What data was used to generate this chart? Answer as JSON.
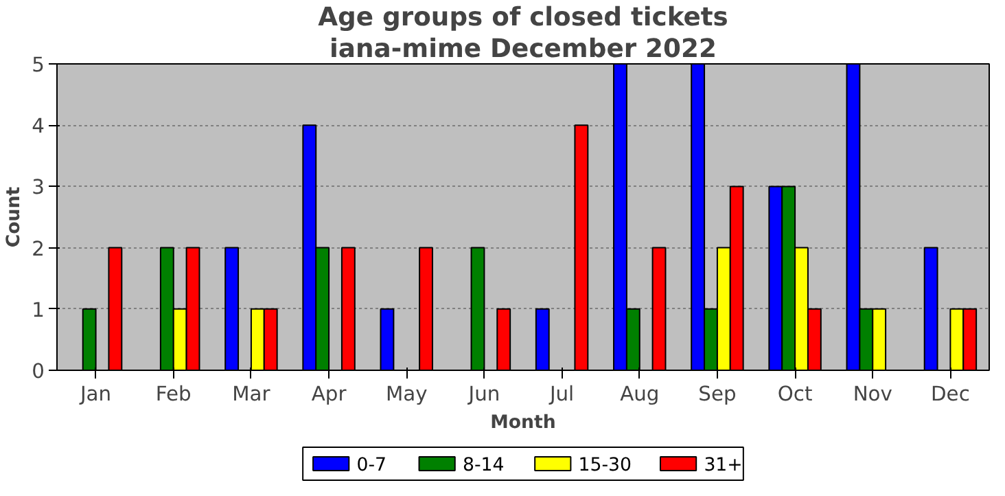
{
  "chart_data": {
    "type": "bar",
    "title": "Age groups of closed tickets",
    "subtitle": "iana-mime December 2022",
    "xlabel": "Month",
    "ylabel": "Count",
    "categories": [
      "Jan",
      "Feb",
      "Mar",
      "Apr",
      "May",
      "Jun",
      "Jul",
      "Aug",
      "Sep",
      "Oct",
      "Nov",
      "Dec"
    ],
    "series": [
      {
        "name": "0-7",
        "color": "#0000ff",
        "values": [
          0,
          0,
          2,
          4,
          1,
          0,
          1,
          5,
          5,
          3,
          5,
          2
        ]
      },
      {
        "name": "8-14",
        "color": "#008000",
        "values": [
          1,
          2,
          0,
          2,
          0,
          2,
          0,
          1,
          1,
          3,
          1,
          0
        ]
      },
      {
        "name": "15-30",
        "color": "#ffff00",
        "values": [
          0,
          1,
          1,
          0,
          0,
          0,
          0,
          0,
          2,
          2,
          1,
          1
        ]
      },
      {
        "name": "31+",
        "color": "#ff0000",
        "values": [
          2,
          2,
          1,
          2,
          2,
          1,
          4,
          2,
          3,
          1,
          0,
          1
        ]
      }
    ],
    "ylim": [
      0,
      5
    ],
    "yticks": [
      0,
      1,
      2,
      3,
      4,
      5
    ],
    "grid": "y",
    "legend": "bottom"
  }
}
